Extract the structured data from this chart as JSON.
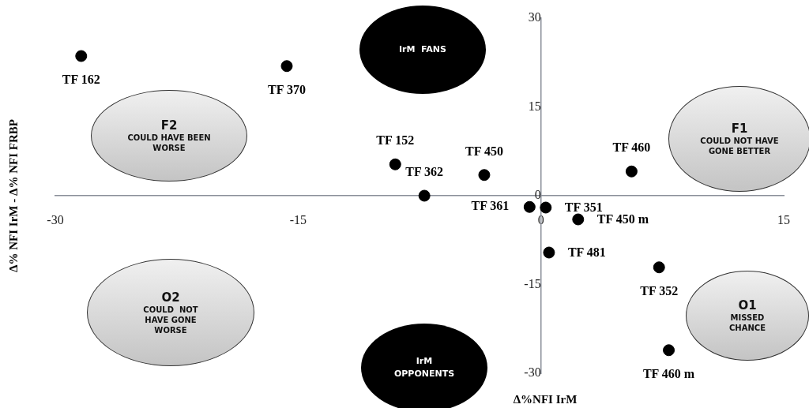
{
  "chart_data": {
    "type": "scatter",
    "xlabel": "Δ%NFI IrM",
    "ylabel": "Δ% NFI IrM - Δ% NFI FRBP",
    "x": [
      -28.4,
      -15.7,
      -9.0,
      -7.2,
      -3.5,
      -0.7,
      0.3,
      2.3,
      5.6,
      0.5,
      7.3,
      7.9
    ],
    "values": [
      23.6,
      21.9,
      5.3,
      0,
      3.5,
      -1.9,
      -2.0,
      -4.0,
      4.1,
      -9.6,
      -12.1,
      -26.1
    ],
    "color": "#000000",
    "marker": "circle",
    "xlim": [
      -30,
      15
    ],
    "ylim": [
      -30,
      30
    ],
    "xticks": [
      -30,
      -15,
      0,
      15
    ],
    "yticks": [
      -30,
      -15,
      0,
      15,
      30
    ],
    "grid": false,
    "legend": false,
    "annotations": [
      "IrM  FANS",
      "F2",
      "COULD HAVE BEEN WORSE",
      "F1",
      "COULD NOT HAVE GONE BETTER",
      "O2",
      "COULD  NOT HAVE GONE WORSE",
      "O1",
      "MISSED CHANCE",
      "IrM OPPONENTS",
      {
        "text": "TF 162",
        "x": -28.4,
        "y": 23.6
      },
      {
        "text": "TF 370",
        "x": -15.7,
        "y": 21.9
      },
      {
        "text": "TF 152",
        "x": -9.0,
        "y": 5.3
      },
      {
        "text": "TF 362",
        "x": -7.2,
        "y": 0
      },
      {
        "text": "TF 450",
        "x": -3.5,
        "y": 3.5
      },
      {
        "text": "TF 361",
        "x": -0.7,
        "y": -1.9
      },
      {
        "text": "TF 351",
        "x": 0.3,
        "y": -2.0
      },
      {
        "text": "TF 450 m",
        "x": 2.3,
        "y": -4.0
      },
      {
        "text": "TF 460",
        "x": 5.6,
        "y": 4.1
      },
      {
        "text": "TF 481",
        "x": 0.5,
        "y": -9.6
      },
      {
        "text": "TF 352",
        "x": 7.3,
        "y": -12.1
      },
      {
        "text": "TF 460 m",
        "x": 7.9,
        "y": -26.1
      }
    ]
  }
}
